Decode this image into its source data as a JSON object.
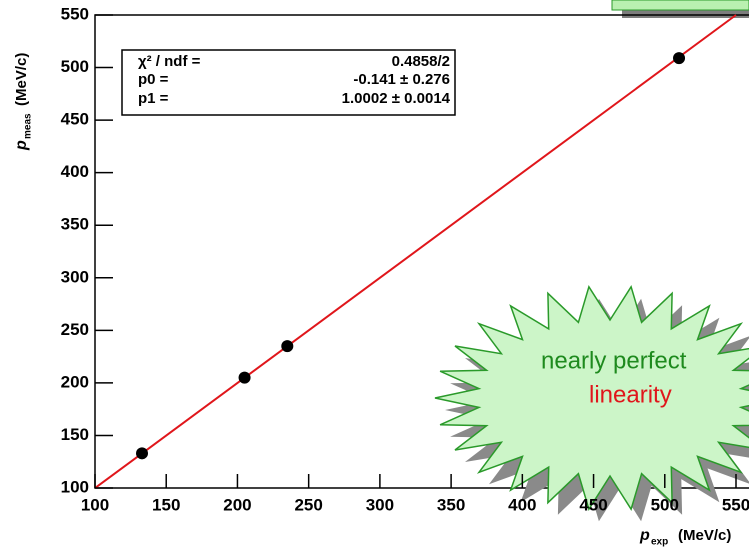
{
  "chart_data": {
    "type": "scatter",
    "x": [
      133,
      205,
      235,
      510
    ],
    "values": [
      133,
      205,
      235,
      509
    ],
    "color": "#000000",
    "fit_line": {
      "x": [
        100,
        550
      ],
      "values": [
        99.9,
        550
      ],
      "color": "#e0161b"
    },
    "xlim": [
      100,
      550
    ],
    "ylim": [
      100,
      550
    ],
    "xticks": [
      100,
      150,
      200,
      250,
      300,
      350,
      400,
      450,
      500,
      550
    ],
    "yticks": [
      100,
      150,
      200,
      250,
      300,
      350,
      400,
      450,
      500,
      550
    ],
    "x_label": {
      "symbol": "p",
      "subscript": "exp",
      "unit": "(MeV/c)"
    },
    "y_label": {
      "symbol": "p",
      "subscript": "meas",
      "unit": "(MeV/c)"
    },
    "stats": [
      {
        "label": "χ² / ndf =",
        "value": "0.4858/2"
      },
      {
        "label": "p0 =",
        "value": "-0.141 ± 0.276"
      },
      {
        "label": "p1 =",
        "value": "1.0002 ± 0.0014"
      }
    ],
    "callout": {
      "line1": "nearly perfect",
      "line2": "linearity"
    }
  }
}
